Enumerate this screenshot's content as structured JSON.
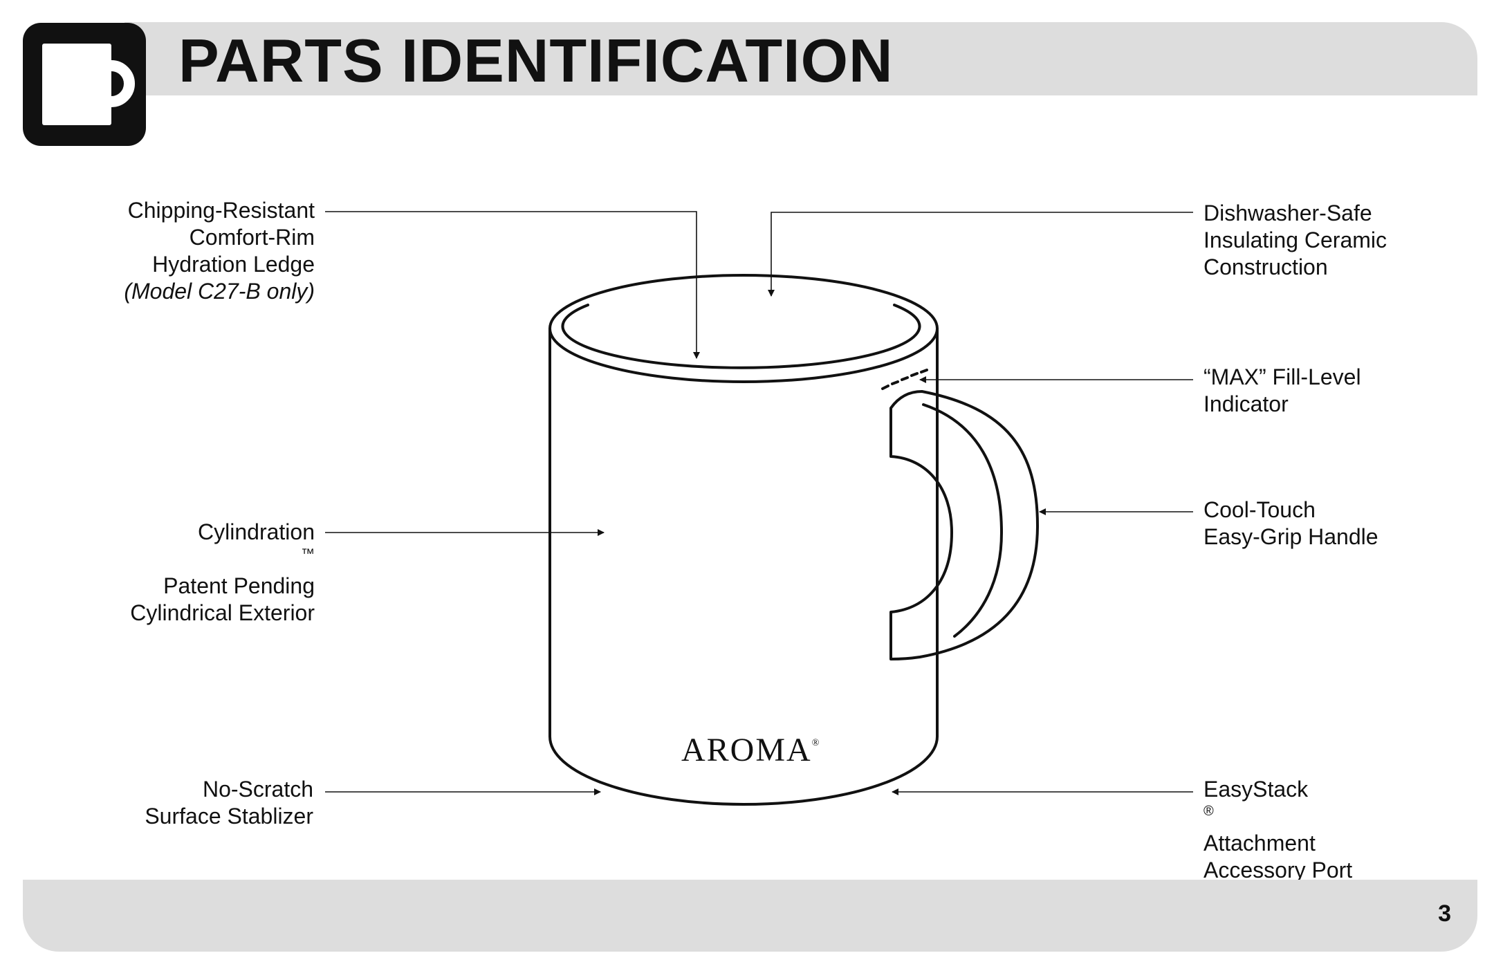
{
  "header": {
    "title": "PARTS IDENTIFICATION",
    "icon": "mug-icon"
  },
  "labels": {
    "rim": {
      "line1": "Chipping-Resistant",
      "line2": "Comfort-Rim",
      "line3": "Hydration Ledge",
      "note": "(Model C27-B only)"
    },
    "ceramic": {
      "line1": "Dishwasher-Safe",
      "line2": "Insulating Ceramic",
      "line3": "Construction"
    },
    "max_fill": {
      "line1": "“MAX” Fill-Level",
      "line2": "Indicator"
    },
    "handle": {
      "line1": "Cool-Touch",
      "line2": "Easy-Grip Handle"
    },
    "exterior": {
      "line1_text": "Cylindration",
      "line1_mark": "™",
      "line2": "Patent Pending",
      "line3": "Cylindrical Exterior"
    },
    "base": {
      "line1": "No-Scratch",
      "line2": "Surface Stablizer"
    },
    "port": {
      "line1_text": "EasyStack",
      "line1_mark": "®",
      "line1_rest": " Attachment",
      "line2": "Accessory Port"
    }
  },
  "brand": {
    "name": "AROMA",
    "mark": "®"
  },
  "footer": {
    "page_number": "3"
  }
}
